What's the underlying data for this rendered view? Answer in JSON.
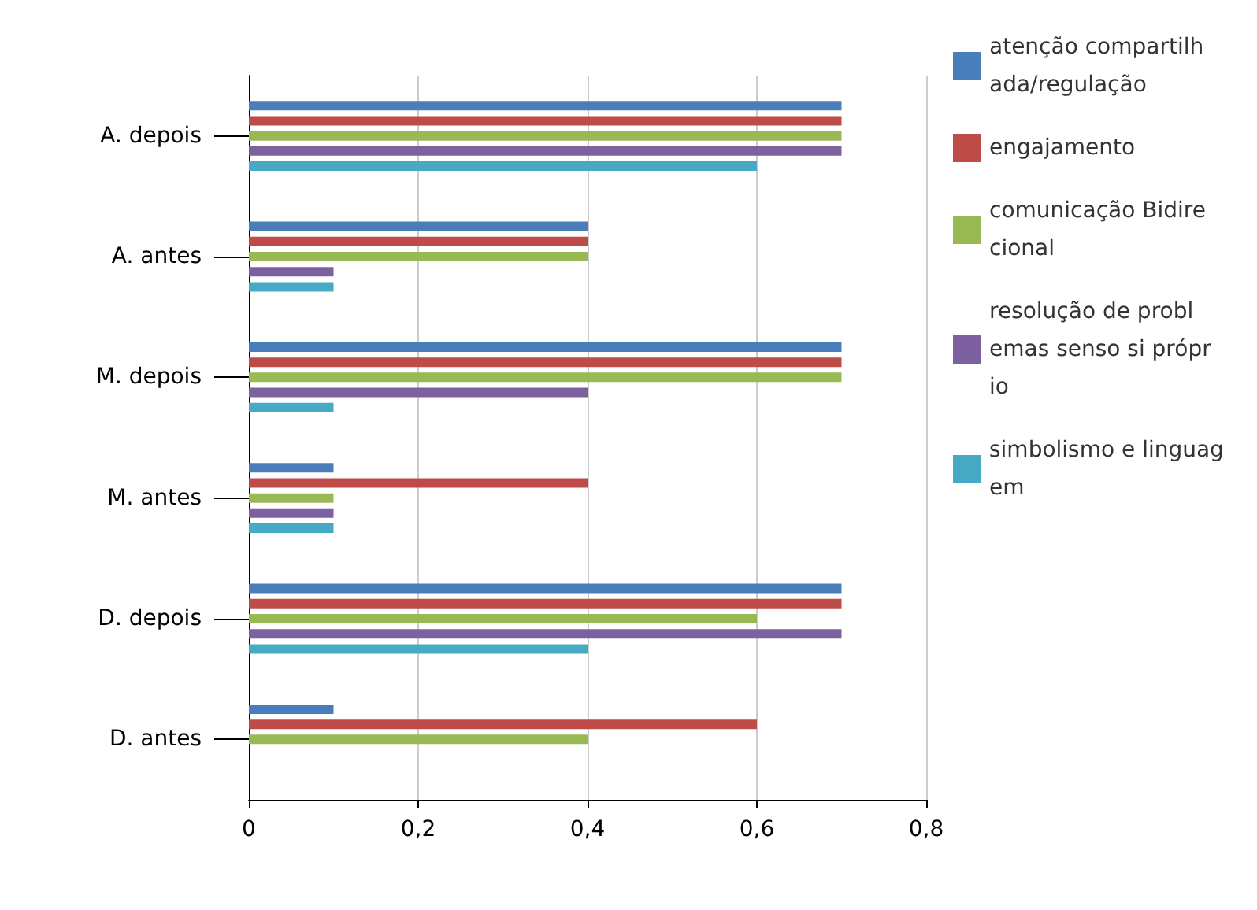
{
  "chart_data": {
    "type": "bar",
    "orientation": "horizontal",
    "categories": [
      "A. depois",
      "A. antes",
      "M. depois",
      "M. antes",
      "D. depois",
      "D. antes"
    ],
    "series": [
      {
        "name": "atenção compartilhada/regulação",
        "color": "#4a7ebb",
        "values": [
          0.7,
          0.4,
          0.7,
          0.1,
          0.7,
          0.1
        ]
      },
      {
        "name": "engajamento",
        "color": "#be4b48",
        "values": [
          0.7,
          0.4,
          0.7,
          0.4,
          0.7,
          0.6
        ]
      },
      {
        "name": "comunicação Bidirecional",
        "color": "#98b954",
        "values": [
          0.7,
          0.4,
          0.7,
          0.1,
          0.6,
          0.4
        ]
      },
      {
        "name": "resolução de problemas senso si próprio",
        "color": "#7d60a0",
        "values": [
          0.7,
          0.1,
          0.4,
          0.1,
          0.7,
          null
        ]
      },
      {
        "name": "simbolismo e linguagem",
        "color": "#46aac5",
        "values": [
          0.6,
          0.1,
          0.1,
          0.1,
          0.4,
          null
        ]
      }
    ],
    "xlim": [
      0,
      0.8
    ],
    "xticks": [
      0,
      {
        "value": 0.2,
        "label": "0,2"
      },
      {
        "value": 0.4,
        "label": "0,4"
      },
      {
        "value": 0.6,
        "label": "0,6"
      },
      {
        "value": 0.8,
        "label": "0,8"
      }
    ],
    "grid": "x",
    "legend": "right"
  }
}
